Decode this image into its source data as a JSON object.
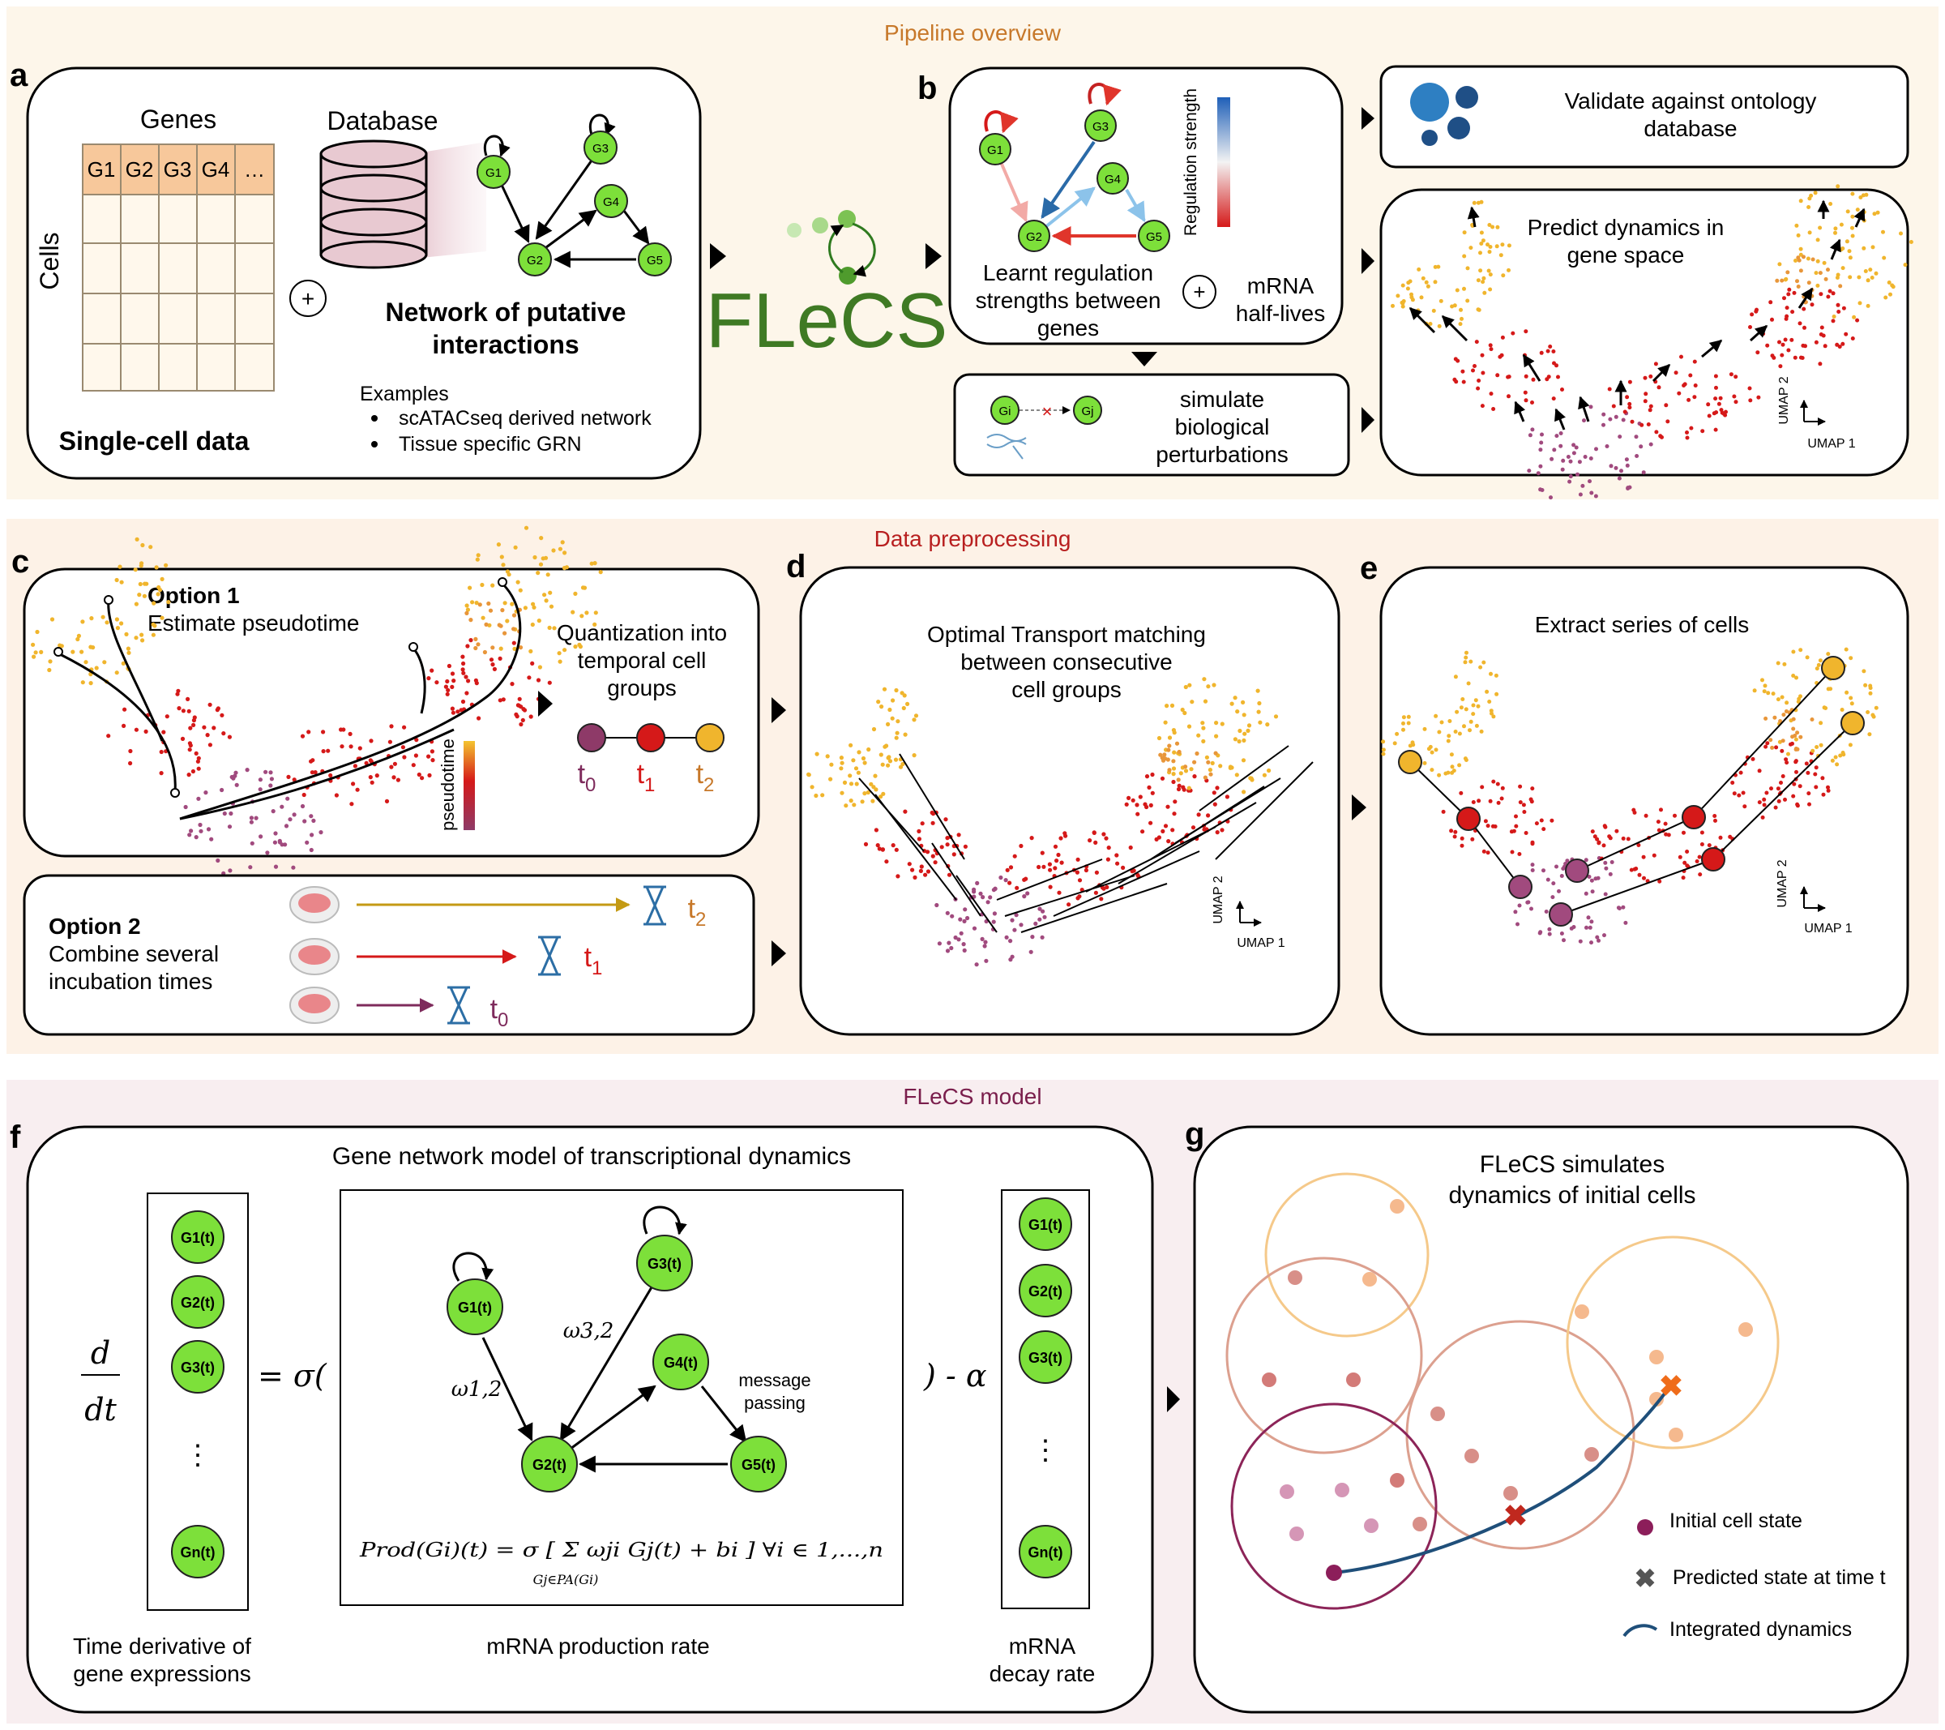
{
  "sections": {
    "pipeline": "Pipeline overview",
    "preprocessing": "Data preprocessing",
    "model": "FLeCS model"
  },
  "panel_letters": {
    "a": "a",
    "b": "b",
    "c": "c",
    "d": "d",
    "e": "e",
    "f": "f",
    "g": "g"
  },
  "panel_a": {
    "genes_label": "Genes",
    "cells_label": "Cells",
    "gene_headers": [
      "G1",
      "G2",
      "G3",
      "G4",
      "…"
    ],
    "single_cell": "Single-cell data",
    "database": "Database",
    "network_title_1": "Network of putative",
    "network_title_2": "interactions",
    "examples": "Examples",
    "example_items": [
      "scATACseq derived network",
      "Tissue specific GRN"
    ],
    "nodes": [
      "G1",
      "G2",
      "G3",
      "G4",
      "G5"
    ],
    "plus": "+"
  },
  "logo": "FLeCS",
  "panel_b": {
    "nodes": [
      "G1",
      "G2",
      "G3",
      "G4",
      "G5"
    ],
    "legend_label": "Regulation strength",
    "caption_1": "Learnt regulation",
    "caption_2": "strengths between",
    "caption_3": "genes",
    "plus": "+",
    "half_1": "mRNA",
    "half_2": "half-lives",
    "perturb_1": "simulate",
    "perturb_2": "biological",
    "perturb_3": "perturbations",
    "perturb_gi": "Gi",
    "perturb_gj": "Gj",
    "validate_1": "Validate against ontology",
    "validate_2": "database",
    "predict_1": "Predict dynamics in",
    "predict_2": "gene space",
    "umap1": "UMAP 1",
    "umap2": "UMAP 2"
  },
  "panel_c": {
    "option1_title": "Option 1",
    "option1_text": "Estimate pseudotime",
    "pseudotime": "pseudotime",
    "quant_1": "Quantization into",
    "quant_2": "temporal cell",
    "quant_3": "groups",
    "t0": "t",
    "t0_sub": "0",
    "t1": "t",
    "t1_sub": "1",
    "t2": "t",
    "t2_sub": "2",
    "option2_title": "Option 2",
    "option2_line1": "Combine several",
    "option2_line2": "incubation times"
  },
  "panel_d": {
    "title_1": "Optimal Transport matching",
    "title_2": "between consecutive",
    "title_3": "cell groups",
    "umap1": "UMAP 1",
    "umap2": "UMAP 2"
  },
  "panel_e": {
    "title": "Extract series of cells",
    "umap1": "UMAP 1",
    "umap2": "UMAP 2"
  },
  "panel_f": {
    "title": "Gene network model of transcriptional dynamics",
    "d": "d",
    "dt": "dt",
    "equals_sigma": "= σ(",
    "close_alpha": ") - α",
    "vector_left": [
      "G1(t)",
      "G2(t)",
      "G3(t)",
      "⋮",
      "Gn(t)"
    ],
    "vector_right": [
      "G1(t)",
      "G2(t)",
      "G3(t)",
      "⋮",
      "Gn(t)"
    ],
    "nodes": [
      "G1(t)",
      "G2(t)",
      "G3(t)",
      "G4(t)",
      "G5(t)"
    ],
    "w12": "ω1,2",
    "w32": "ω3,2",
    "message_1": "message",
    "message_2": "passing",
    "formula": "Prod(Gi)(t) = σ [ Σ ωji Gj(t) + bi ]   ∀i ∈ 1,...,n",
    "formula_sum_sub": "Gj∈PA(Gi)",
    "caption_left_1": "Time derivative of",
    "caption_left_2": "gene expressions",
    "caption_mid": "mRNA production rate",
    "caption_right_1": "mRNA",
    "caption_right_2": "decay rate"
  },
  "panel_g": {
    "title_1": "FLeCS simulates",
    "title_2": "dynamics of initial cells",
    "legend_initial": "Initial cell state",
    "legend_predicted": "Predicted state at time t",
    "legend_integrated": "Integrated dynamics"
  },
  "colors": {
    "pipeline_bg": "#fdf6ea",
    "preproc_bg": "#fdf2e7",
    "model_bg": "#f8eef0",
    "pipeline_title": "#c7782a",
    "preproc_title": "#b81f1f",
    "model_title": "#7a1e4c",
    "node_green": "#7de03a",
    "logo_green": "#3f7a24",
    "t0": "#7e2b5c",
    "t1": "#d51919",
    "t2": "#f0b52d"
  }
}
